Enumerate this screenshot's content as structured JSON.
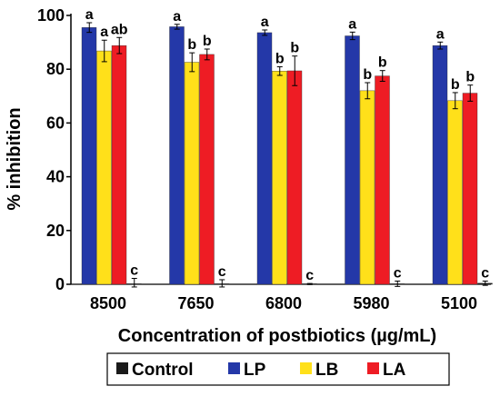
{
  "chart_data": {
    "type": "bar",
    "xlabel": "Concentration of postbiotics (µg/mL)",
    "ylabel": "% inhibition",
    "ylim": [
      0,
      100
    ],
    "yticks": [
      0,
      20,
      40,
      60,
      80,
      100
    ],
    "grid": false,
    "legend_position": "bottom",
    "categories": [
      "8500",
      "7650",
      "6800",
      "5980",
      "5100"
    ],
    "series": [
      {
        "name": "LP",
        "color": "#2438a8",
        "values": [
          95.5,
          95.8,
          93.6,
          92.4,
          88.8
        ],
        "errors": [
          1.8,
          0.9,
          1.0,
          1.4,
          1.3
        ],
        "labels": [
          "a",
          "a",
          "a",
          "a",
          "a"
        ]
      },
      {
        "name": "LB",
        "color": "#ffe01a",
        "values": [
          86.8,
          82.6,
          79.3,
          72.0,
          68.3
        ],
        "errors": [
          4.0,
          3.5,
          1.6,
          3.0,
          3.0
        ],
        "labels": [
          "a",
          "b",
          "b",
          "b",
          "b"
        ]
      },
      {
        "name": "LA",
        "color": "#ee1c24",
        "values": [
          88.8,
          85.5,
          79.4,
          77.5,
          71.1
        ],
        "errors": [
          3.0,
          2.0,
          5.5,
          2.0,
          3.0
        ],
        "labels": [
          "ab",
          "b",
          "b",
          "b",
          "b"
        ]
      },
      {
        "name": "Control",
        "color": "#1a1a1a",
        "values": [
          0.2,
          0.2,
          0.1,
          0.2,
          0.4
        ],
        "errors": [
          2.0,
          1.5,
          0.2,
          1.0,
          0.8
        ],
        "labels": [
          "c",
          "c",
          "c",
          "c",
          "c"
        ]
      }
    ],
    "legend_order": [
      "Control",
      "LP",
      "LB",
      "LA"
    ]
  }
}
